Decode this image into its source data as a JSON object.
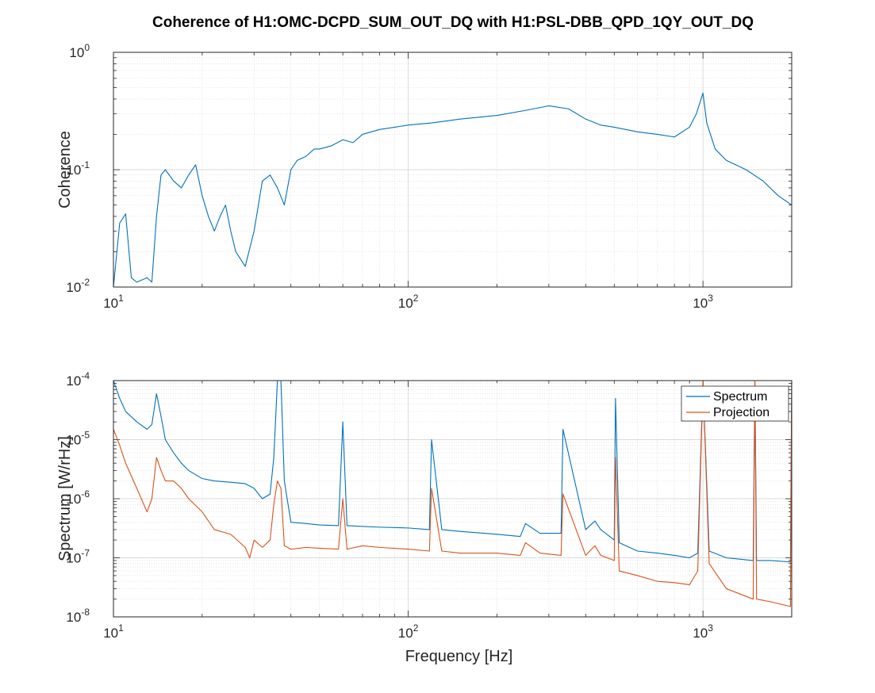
{
  "figure": {
    "title": "Coherence of H1:OMC-DCPD_SUM_OUT_DQ with H1:PSL-DBB_QPD_1QY_OUT_DQ"
  },
  "colors": {
    "spectrum": "#0072bd",
    "projection": "#d95319",
    "grid": "#d9d9d9",
    "axes": "#262626"
  },
  "chart_data": [
    {
      "type": "line",
      "xscale": "log",
      "yscale": "log",
      "xlim": [
        10,
        2000
      ],
      "ylim": [
        0.01,
        1
      ],
      "xlabel": "",
      "ylabel": "Coherence",
      "grid": true,
      "x_ticks": [
        10,
        100,
        1000
      ],
      "x_tick_labels": [
        "10^1",
        "10^2",
        "10^3"
      ],
      "y_ticks": [
        0.01,
        0.1,
        1
      ],
      "y_tick_labels": [
        "10^-2",
        "10^-1",
        "10^0"
      ],
      "series": [
        {
          "color": "#0072bd",
          "x": [
            10,
            10.5,
            11,
            11.5,
            12,
            13,
            13.5,
            14,
            14.5,
            15,
            16,
            17,
            18,
            19,
            20,
            21,
            22,
            23,
            24,
            25,
            26,
            28,
            30,
            32,
            34,
            36,
            38,
            40,
            42,
            45,
            48,
            50,
            55,
            60,
            65,
            70,
            80,
            90,
            100,
            120,
            150,
            200,
            250,
            300,
            350,
            400,
            450,
            500,
            600,
            700,
            800,
            900,
            950,
            1000,
            1030,
            1100,
            1200,
            1400,
            1600,
            1800,
            2000
          ],
          "y": [
            0.01,
            0.035,
            0.042,
            0.012,
            0.011,
            0.012,
            0.011,
            0.04,
            0.09,
            0.1,
            0.08,
            0.07,
            0.09,
            0.11,
            0.06,
            0.04,
            0.03,
            0.04,
            0.05,
            0.03,
            0.02,
            0.015,
            0.03,
            0.08,
            0.09,
            0.07,
            0.05,
            0.1,
            0.12,
            0.13,
            0.15,
            0.15,
            0.16,
            0.18,
            0.17,
            0.2,
            0.22,
            0.23,
            0.24,
            0.25,
            0.27,
            0.29,
            0.32,
            0.35,
            0.33,
            0.27,
            0.24,
            0.23,
            0.21,
            0.2,
            0.19,
            0.23,
            0.3,
            0.45,
            0.25,
            0.15,
            0.12,
            0.1,
            0.08,
            0.06,
            0.05
          ]
        }
      ]
    },
    {
      "type": "line",
      "xscale": "log",
      "yscale": "log",
      "xlim": [
        10,
        2000
      ],
      "ylim": [
        1e-08,
        0.0001
      ],
      "xlabel": "Frequency [Hz]",
      "ylabel": "Spectrum [W/rHz]",
      "grid": true,
      "legend_position": "top-right",
      "x_ticks": [
        10,
        100,
        1000
      ],
      "x_tick_labels": [
        "10^1",
        "10^2",
        "10^3"
      ],
      "y_ticks": [
        1e-08,
        1e-07,
        1e-06,
        1e-05,
        0.0001
      ],
      "y_tick_labels": [
        "10^-8",
        "10^-7",
        "10^-6",
        "10^-5",
        "10^-4"
      ],
      "series": [
        {
          "name": "Spectrum",
          "color": "#0072bd",
          "x": [
            10,
            10.5,
            11,
            12,
            13,
            13.5,
            14,
            14.5,
            15,
            16,
            17,
            18,
            20,
            22,
            25,
            28,
            30,
            32,
            34,
            35,
            36,
            37,
            38,
            40,
            45,
            50,
            58,
            60,
            62,
            70,
            80,
            100,
            118,
            120,
            130,
            150,
            200,
            240,
            250,
            280,
            330,
            335,
            400,
            430,
            450,
            500,
            505,
            520,
            600,
            700,
            800,
            900,
            960,
            1000,
            1050,
            1200,
            1480,
            1500,
            1520,
            1700,
            1980,
            2000
          ],
          "y": [
            0.0001,
            5e-05,
            3e-05,
            2e-05,
            1.5e-05,
            1.8e-05,
            6e-05,
            2.5e-05,
            1e-05,
            6e-06,
            4e-06,
            3e-06,
            2.2e-06,
            2e-06,
            1.9e-06,
            1.8e-06,
            1.5e-06,
            1e-06,
            1.2e-06,
            5e-06,
            0.0001,
            0.0001,
            2e-06,
            4e-07,
            3.8e-07,
            3.6e-07,
            3.5e-07,
            2e-05,
            3.5e-07,
            3.4e-07,
            3.3e-07,
            3.2e-07,
            3e-07,
            1e-05,
            3e-07,
            2.8e-07,
            2.5e-07,
            2.3e-07,
            3.8e-07,
            2.6e-07,
            2.6e-07,
            1.5e-05,
            3e-07,
            4.2e-07,
            3e-07,
            2e-07,
            5e-05,
            1.8e-07,
            1.3e-07,
            1.2e-07,
            1.1e-07,
            1e-07,
            1.2e-07,
            0.0001,
            1.3e-07,
            1e-07,
            9e-08,
            0.0001,
            9e-08,
            9e-08,
            8.5e-08,
            0.0001
          ]
        },
        {
          "name": "Projection",
          "color": "#d95319",
          "x": [
            10,
            10.5,
            11,
            12,
            13,
            13.5,
            14,
            14.5,
            15,
            16,
            17,
            18,
            20,
            22,
            25,
            28,
            29,
            30,
            32,
            34,
            35,
            36,
            37,
            38,
            40,
            45,
            50,
            58,
            60,
            62,
            70,
            80,
            100,
            118,
            120,
            130,
            150,
            200,
            240,
            250,
            280,
            330,
            335,
            400,
            430,
            450,
            500,
            505,
            520,
            600,
            700,
            800,
            900,
            960,
            1000,
            1050,
            1200,
            1480,
            1500,
            1520,
            1700,
            1980,
            2000
          ],
          "y": [
            1.5e-05,
            8e-06,
            4e-06,
            1.5e-06,
            6e-07,
            1e-06,
            5e-06,
            3e-06,
            2e-06,
            2e-06,
            1.5e-06,
            1e-06,
            6e-07,
            3e-07,
            2.5e-07,
            1.5e-07,
            1e-07,
            2e-07,
            1.5e-07,
            2e-07,
            8e-07,
            2e-06,
            1.5e-06,
            1.6e-07,
            1.4e-07,
            1.5e-07,
            1.45e-07,
            1.4e-07,
            1e-06,
            1.4e-07,
            1.6e-07,
            1.5e-07,
            1.4e-07,
            1.3e-07,
            1.5e-06,
            1.3e-07,
            1.2e-07,
            1.2e-07,
            1.1e-07,
            1.8e-07,
            1.2e-07,
            1.1e-07,
            1.2e-06,
            1.1e-07,
            1.6e-07,
            1.1e-07,
            9e-08,
            5e-06,
            6e-08,
            5e-08,
            4e-08,
            3.8e-08,
            3.5e-08,
            6e-08,
            0.0001,
            8e-08,
            3e-08,
            2e-08,
            0.0001,
            2e-08,
            1.8e-08,
            1.5e-08,
            0.0001
          ]
        }
      ]
    }
  ]
}
